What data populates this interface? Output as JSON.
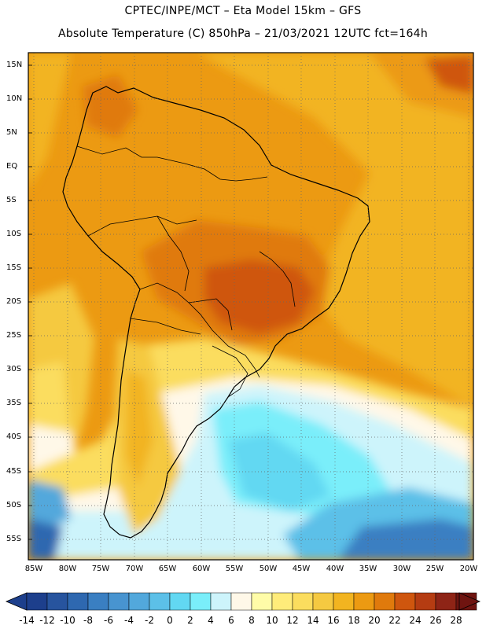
{
  "header": {
    "line1": "CPTEC/INPE/MCT –  Eta Model 15km – GFS",
    "line2": "Absolute Temperature (C) 850hPa – 21/03/2021 12UTC fct=164h"
  },
  "map": {
    "lat_labels": [
      "15N",
      "10N",
      "5N",
      "EQ",
      "5S",
      "10S",
      "15S",
      "20S",
      "25S",
      "30S",
      "35S",
      "40S",
      "45S",
      "50S",
      "55S"
    ],
    "lon_labels": [
      "85W",
      "80W",
      "75W",
      "70W",
      "65W",
      "60W",
      "55W",
      "50W",
      "45W",
      "40W",
      "35W",
      "30W",
      "25W",
      "20W"
    ],
    "lat_range": [
      -58,
      16
    ],
    "lon_range": [
      -86,
      -19.5
    ]
  },
  "colorbar": {
    "labels": [
      "-14",
      "-12",
      "-10",
      "-8",
      "-6",
      "-4",
      "-2",
      "0",
      "2",
      "4",
      "6",
      "8",
      "10",
      "12",
      "14",
      "16",
      "18",
      "20",
      "22",
      "24",
      "26",
      "28"
    ],
    "colors": [
      "#1d3f8c",
      "#27549e",
      "#2e68b0",
      "#3a7fc2",
      "#4894d0",
      "#52a8dc",
      "#5cc0e8",
      "#62d8f2",
      "#7aeefa",
      "#cdf4fb",
      "#fff8e8",
      "#fffca8",
      "#ffec7a",
      "#fbdd5e",
      "#f5c941",
      "#f2b420",
      "#ec9a12",
      "#e07a0c",
      "#cf560e",
      "#b53c12",
      "#8e2416",
      "#6f1410"
    ]
  }
}
